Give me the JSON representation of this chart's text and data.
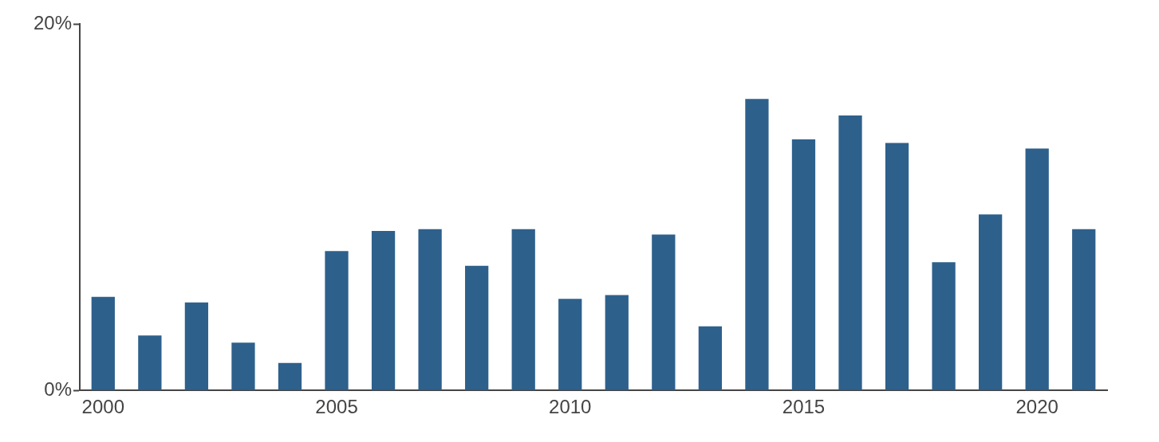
{
  "chart_data": {
    "type": "bar",
    "categories": [
      "2000",
      null,
      null,
      null,
      null,
      "2005",
      null,
      null,
      null,
      null,
      "2010",
      null,
      null,
      null,
      null,
      "2015",
      null,
      null,
      null,
      null,
      "2020",
      null
    ],
    "values": [
      5.1,
      3.0,
      4.8,
      2.6,
      1.5,
      7.6,
      8.7,
      8.8,
      6.8,
      8.8,
      5.0,
      5.2,
      8.5,
      3.5,
      15.9,
      13.7,
      15.0,
      13.5,
      7.0,
      9.6,
      13.2,
      8.8
    ],
    "color": "#2e608c",
    "ylim": [
      0,
      20
    ],
    "yticks": [
      {
        "value": 0,
        "label": "0%"
      },
      {
        "value": 20,
        "label": "20%"
      }
    ],
    "grid": false,
    "legend": false
  }
}
